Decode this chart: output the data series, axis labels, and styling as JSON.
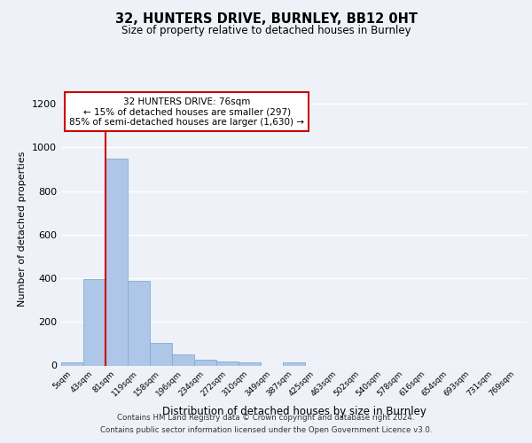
{
  "title1": "32, HUNTERS DRIVE, BURNLEY, BB12 0HT",
  "title2": "Size of property relative to detached houses in Burnley",
  "xlabel": "Distribution of detached houses by size in Burnley",
  "ylabel": "Number of detached properties",
  "categories": [
    "5sqm",
    "43sqm",
    "81sqm",
    "119sqm",
    "158sqm",
    "196sqm",
    "234sqm",
    "272sqm",
    "310sqm",
    "349sqm",
    "387sqm",
    "425sqm",
    "463sqm",
    "502sqm",
    "540sqm",
    "578sqm",
    "616sqm",
    "654sqm",
    "693sqm",
    "731sqm",
    "769sqm"
  ],
  "values": [
    15,
    395,
    950,
    390,
    105,
    52,
    27,
    18,
    14,
    0,
    14,
    0,
    0,
    0,
    0,
    0,
    0,
    0,
    0,
    0,
    0
  ],
  "bar_color": "#aec6e8",
  "bar_edge_color": "#7bafd4",
  "vline_color": "#cc0000",
  "annotation_text": "32 HUNTERS DRIVE: 76sqm\n← 15% of detached houses are smaller (297)\n85% of semi-detached houses are larger (1,630) →",
  "annotation_box_color": "#ffffff",
  "annotation_box_edge": "#cc0000",
  "ylim": [
    0,
    1250
  ],
  "yticks": [
    0,
    200,
    400,
    600,
    800,
    1000,
    1200
  ],
  "footer1": "Contains HM Land Registry data © Crown copyright and database right 2024.",
  "footer2": "Contains public sector information licensed under the Open Government Licence v3.0.",
  "bg_color": "#eef2f8",
  "grid_color": "#ffffff"
}
